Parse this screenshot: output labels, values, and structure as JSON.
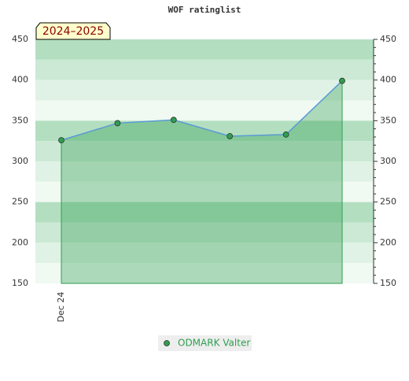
{
  "chart_data": {
    "type": "line",
    "title": "WOF ratinglist",
    "badge": "2024–2025",
    "categories": [
      "Dec 24",
      null,
      null,
      null,
      null,
      null
    ],
    "series": [
      {
        "name": "ODMARK Valter",
        "color": "#2e9e4f",
        "line_color": "#5b9bd5",
        "values": [
          326,
          347,
          351,
          331,
          333,
          399
        ]
      }
    ],
    "ylim": [
      150,
      450
    ],
    "yticks": [
      150,
      200,
      250,
      300,
      350,
      400,
      450
    ],
    "grid": true
  }
}
